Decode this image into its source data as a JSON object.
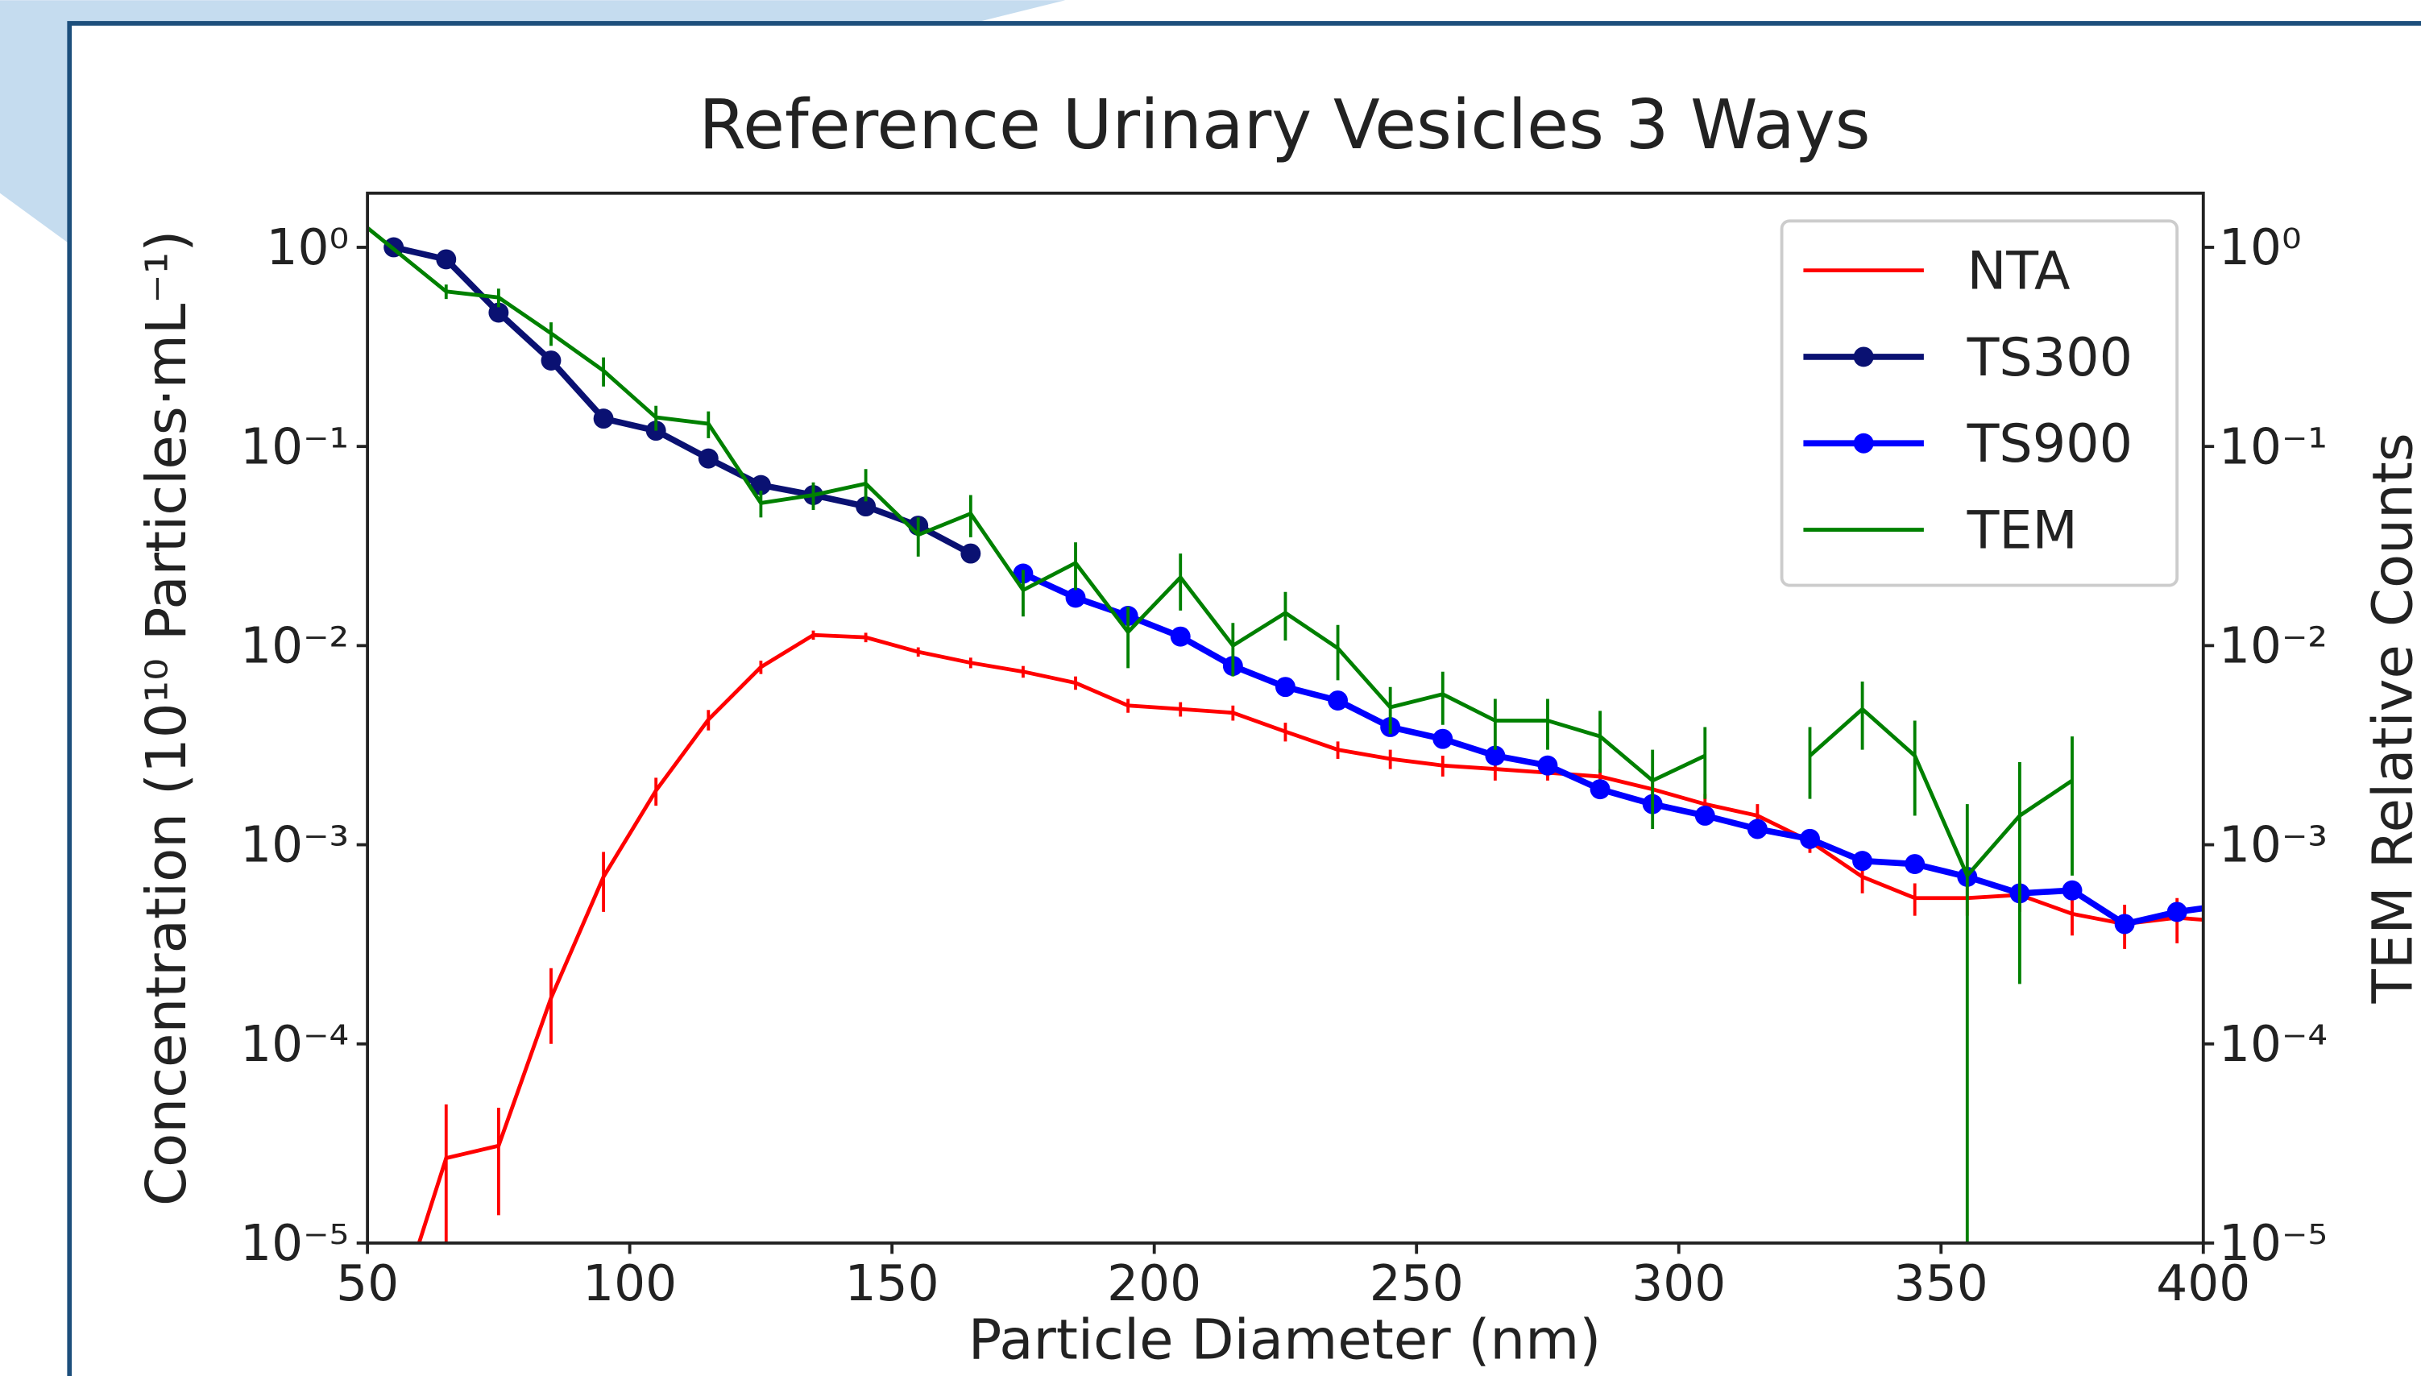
{
  "chart_data": {
    "type": "line",
    "title": "Reference Urinary Vesicles 3 Ways",
    "x_label": "Particle Diameter (nm)",
    "y_label": "Concentration (10¹⁰ Particles·mL⁻¹)",
    "y2_label": "TEM Relative Counts",
    "xlim": [
      50,
      400
    ],
    "xticks": [
      50,
      100,
      150,
      200,
      250,
      300,
      350,
      400
    ],
    "ylim": [
      1e-05,
      1.87
    ],
    "y2lim": [
      1e-05,
      1.87
    ],
    "yscale": "log",
    "y2scale": "log",
    "yticks": [
      {
        "value": 1,
        "label": "10⁰"
      },
      {
        "value": 0.1,
        "label": "10⁻¹"
      },
      {
        "value": 0.01,
        "label": "10⁻²"
      },
      {
        "value": 0.001,
        "label": "10⁻³"
      },
      {
        "value": 0.0001,
        "label": "10⁻⁴"
      },
      {
        "value": 1e-05,
        "label": "10⁻⁵"
      }
    ],
    "y2ticks": [
      {
        "value": 1,
        "label": "10⁰"
      },
      {
        "value": 0.1,
        "label": "10⁻¹"
      },
      {
        "value": 0.01,
        "label": "10⁻²"
      },
      {
        "value": 0.001,
        "label": "10⁻³"
      },
      {
        "value": 0.0001,
        "label": "10⁻⁴"
      },
      {
        "value": 1e-05,
        "label": "10⁻⁵"
      }
    ],
    "legend": "upper right",
    "series": [
      {
        "name": "NTA",
        "color": "#ff0000",
        "markers": false,
        "x": [
          55,
          65,
          75,
          85,
          95,
          105,
          115,
          125,
          135,
          145,
          155,
          165,
          175,
          185,
          195,
          205,
          215,
          225,
          235,
          245,
          255,
          265,
          275,
          285,
          295,
          305,
          315,
          325,
          335,
          345,
          355,
          365,
          375,
          385,
          395,
          405
        ],
        "values": [
          4e-06,
          2.67e-05,
          3.08e-05,
          0.00017,
          0.00069,
          0.00187,
          0.00425,
          0.0078,
          0.0113,
          0.011,
          0.0093,
          0.0082,
          0.0074,
          0.0065,
          0.005,
          0.0048,
          0.0046,
          0.0037,
          0.003,
          0.0027,
          0.0025,
          0.0024,
          0.0023,
          0.0022,
          0.0019,
          0.0016,
          0.0014,
          0.00104,
          0.00069,
          0.00054,
          0.00054,
          0.00056,
          0.00045,
          0.0004,
          0.00043,
          0.00041
        ],
        "errors": [
          2e-06,
          2.3e-05,
          1.7e-05,
          7e-05,
          0.00023,
          0.0003,
          0.0005,
          0.0006,
          0.0006,
          0.0006,
          0.0005,
          0.0005,
          0.0005,
          0.0005,
          0.0004,
          0.0004,
          0.0004,
          0.0004,
          0.0003,
          0.0003,
          0.0003,
          0.0003,
          0.0002,
          0.0002,
          0.0002,
          0.0002,
          0.0002,
          0.00013,
          0.00012,
          0.0001,
          0.0001,
          0.0001,
          0.0001,
          0.0001,
          0.00011,
          0.0001
        ]
      },
      {
        "name": "TS300",
        "color": "#0a1172",
        "markers": true,
        "x": [
          55,
          65,
          75,
          85,
          95,
          105,
          115,
          125,
          135,
          145,
          155,
          165
        ],
        "values": [
          1.0,
          0.87,
          0.47,
          0.27,
          0.138,
          0.12,
          0.087,
          0.064,
          0.057,
          0.05,
          0.04,
          0.029
        ]
      },
      {
        "name": "TS900",
        "color": "#0000ff",
        "markers": true,
        "x": [
          175,
          185,
          195,
          205,
          215,
          225,
          235,
          245,
          255,
          265,
          275,
          285,
          295,
          305,
          315,
          325,
          335,
          345,
          355,
          365,
          375,
          385,
          395,
          405
        ],
        "values": [
          0.023,
          0.0174,
          0.0141,
          0.0111,
          0.0079,
          0.0062,
          0.0053,
          0.0039,
          0.0034,
          0.0028,
          0.0025,
          0.0019,
          0.0016,
          0.0014,
          0.0012,
          0.00107,
          0.00083,
          0.0008,
          0.00069,
          0.00057,
          0.00059,
          0.0004,
          0.00046,
          0.0005
        ]
      },
      {
        "name": "TEM",
        "color": "#008000",
        "markers": false,
        "axis": "y2",
        "x": [
          45,
          65,
          75,
          85,
          95,
          105,
          115,
          125,
          135,
          145,
          155,
          165,
          175,
          185,
          195,
          205,
          215,
          225,
          235,
          245,
          255,
          265,
          275,
          285,
          295,
          305,
          315,
          325,
          335,
          345,
          355,
          365,
          375
        ],
        "values": [
          1.6,
          0.6,
          0.56,
          0.37,
          0.24,
          0.14,
          0.13,
          0.052,
          0.057,
          0.065,
          0.036,
          0.046,
          0.019,
          0.026,
          0.0117,
          0.022,
          0.01,
          0.0146,
          0.0097,
          0.0049,
          0.0057,
          0.0042,
          0.0042,
          0.0035,
          0.0021,
          0.0028,
          null,
          0.0028,
          0.0048,
          0.0028,
          0.0007,
          0.0014,
          0.0021
        ],
        "errors": [
          0.1,
          0.05,
          0.06,
          0.05,
          0.04,
          0.02,
          0.02,
          0.008,
          0.009,
          0.012,
          0.008,
          0.011,
          0.005,
          0.007,
          0.004,
          0.007,
          0.003,
          0.004,
          0.003,
          0.0013,
          0.0017,
          0.0012,
          0.0012,
          0.0012,
          0.0009,
          0.0011,
          null,
          0.0011,
          0.0018,
          0.0014,
          0.0009,
          0.0012,
          0.0014
        ]
      }
    ]
  }
}
